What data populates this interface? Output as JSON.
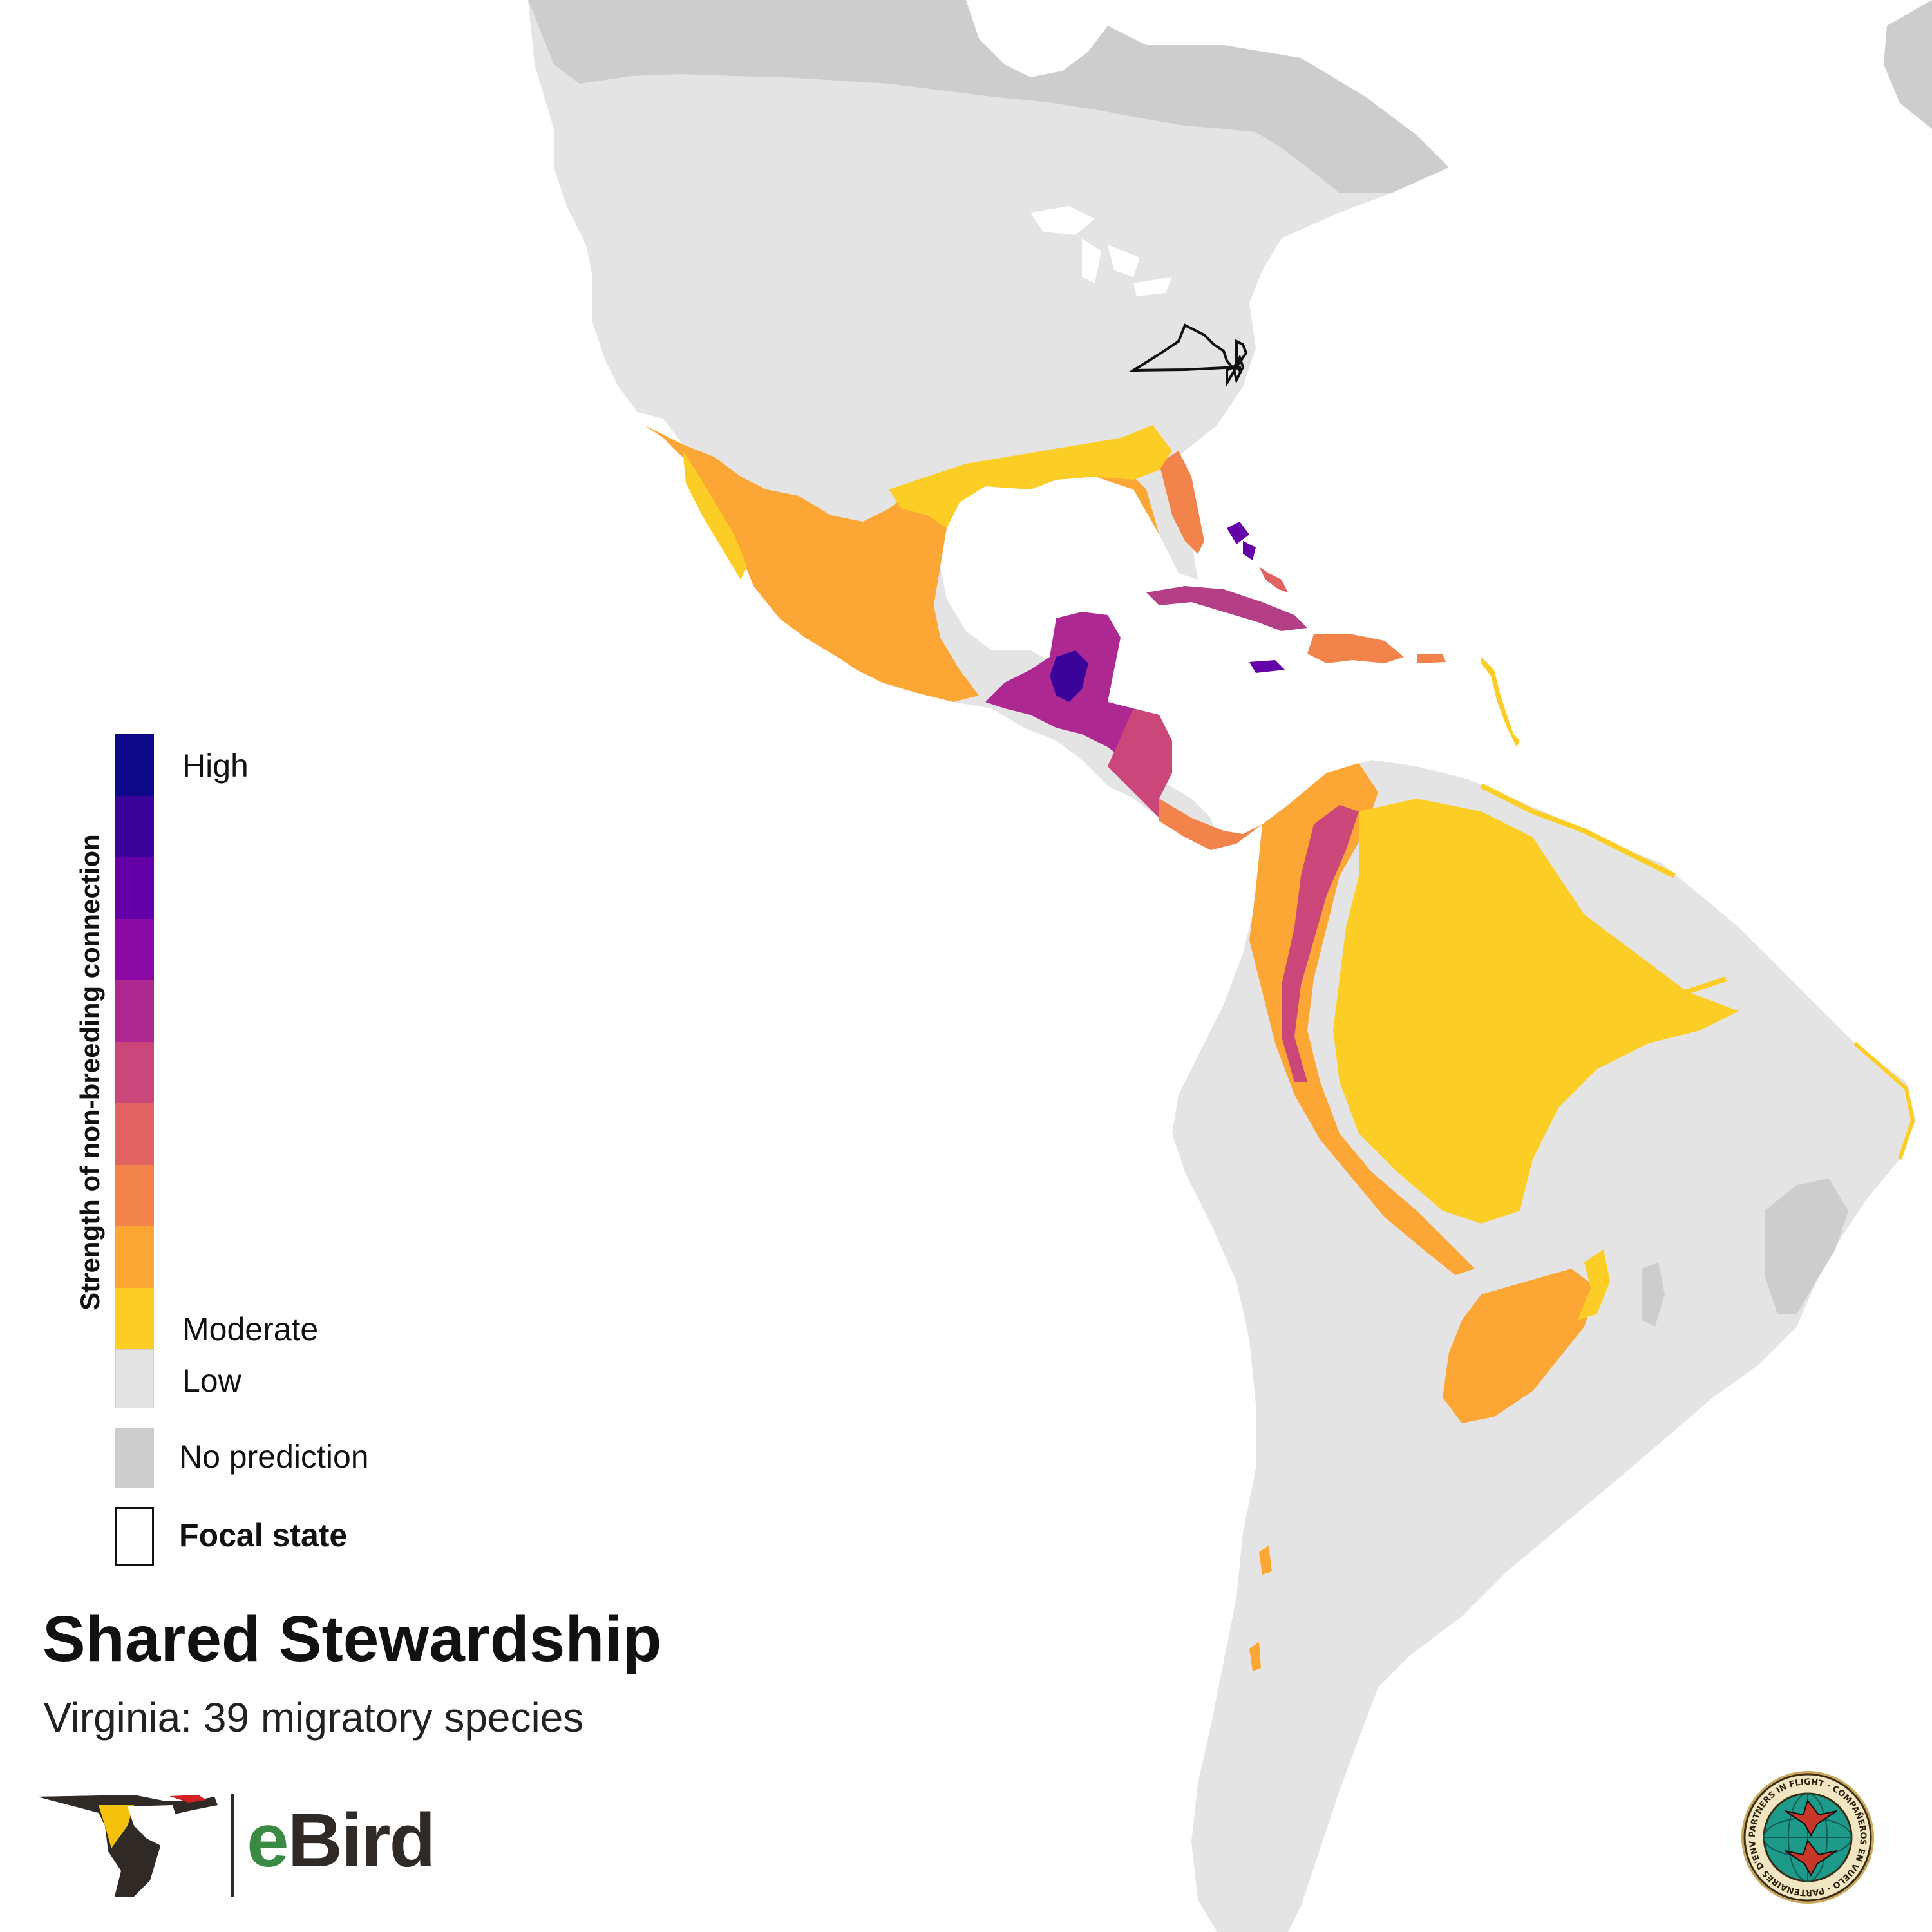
{
  "legend": {
    "title": "Strength of non-breeding connection",
    "high_label": "High",
    "moderate_label": "Moderate",
    "low_label": "Low",
    "no_prediction_label": "No prediction",
    "focal_state_label": "Focal state",
    "ramp_colors": [
      "#0d0887",
      "#3a049a",
      "#6300a7",
      "#8b0aa5",
      "#ae2891",
      "#cb4679",
      "#e16462",
      "#f1834b",
      "#fca636",
      "#fcce25"
    ],
    "low_color": "#e4e4e4",
    "no_prediction_color": "#cdcdcd"
  },
  "map": {
    "land_color": "#e4e4e4",
    "no_prediction_color": "#cdcdcd",
    "water_color": "#ffffff",
    "focal_state": "Virginia"
  },
  "title": "Shared Stewardship",
  "subtitle": "Virginia: 39 migratory species",
  "branding": {
    "ebird_e": "e",
    "ebird_rest": "Bird",
    "ebird_logo_icon": "ebird-woodpecker-logo-icon",
    "pif_seal_icon": "partners-in-flight-seal-icon",
    "pif_seal_text": "PARTNERS IN FLIGHT · COMPAÑEROS EN VUELO · PARTENAIRES D'ENVOL"
  }
}
